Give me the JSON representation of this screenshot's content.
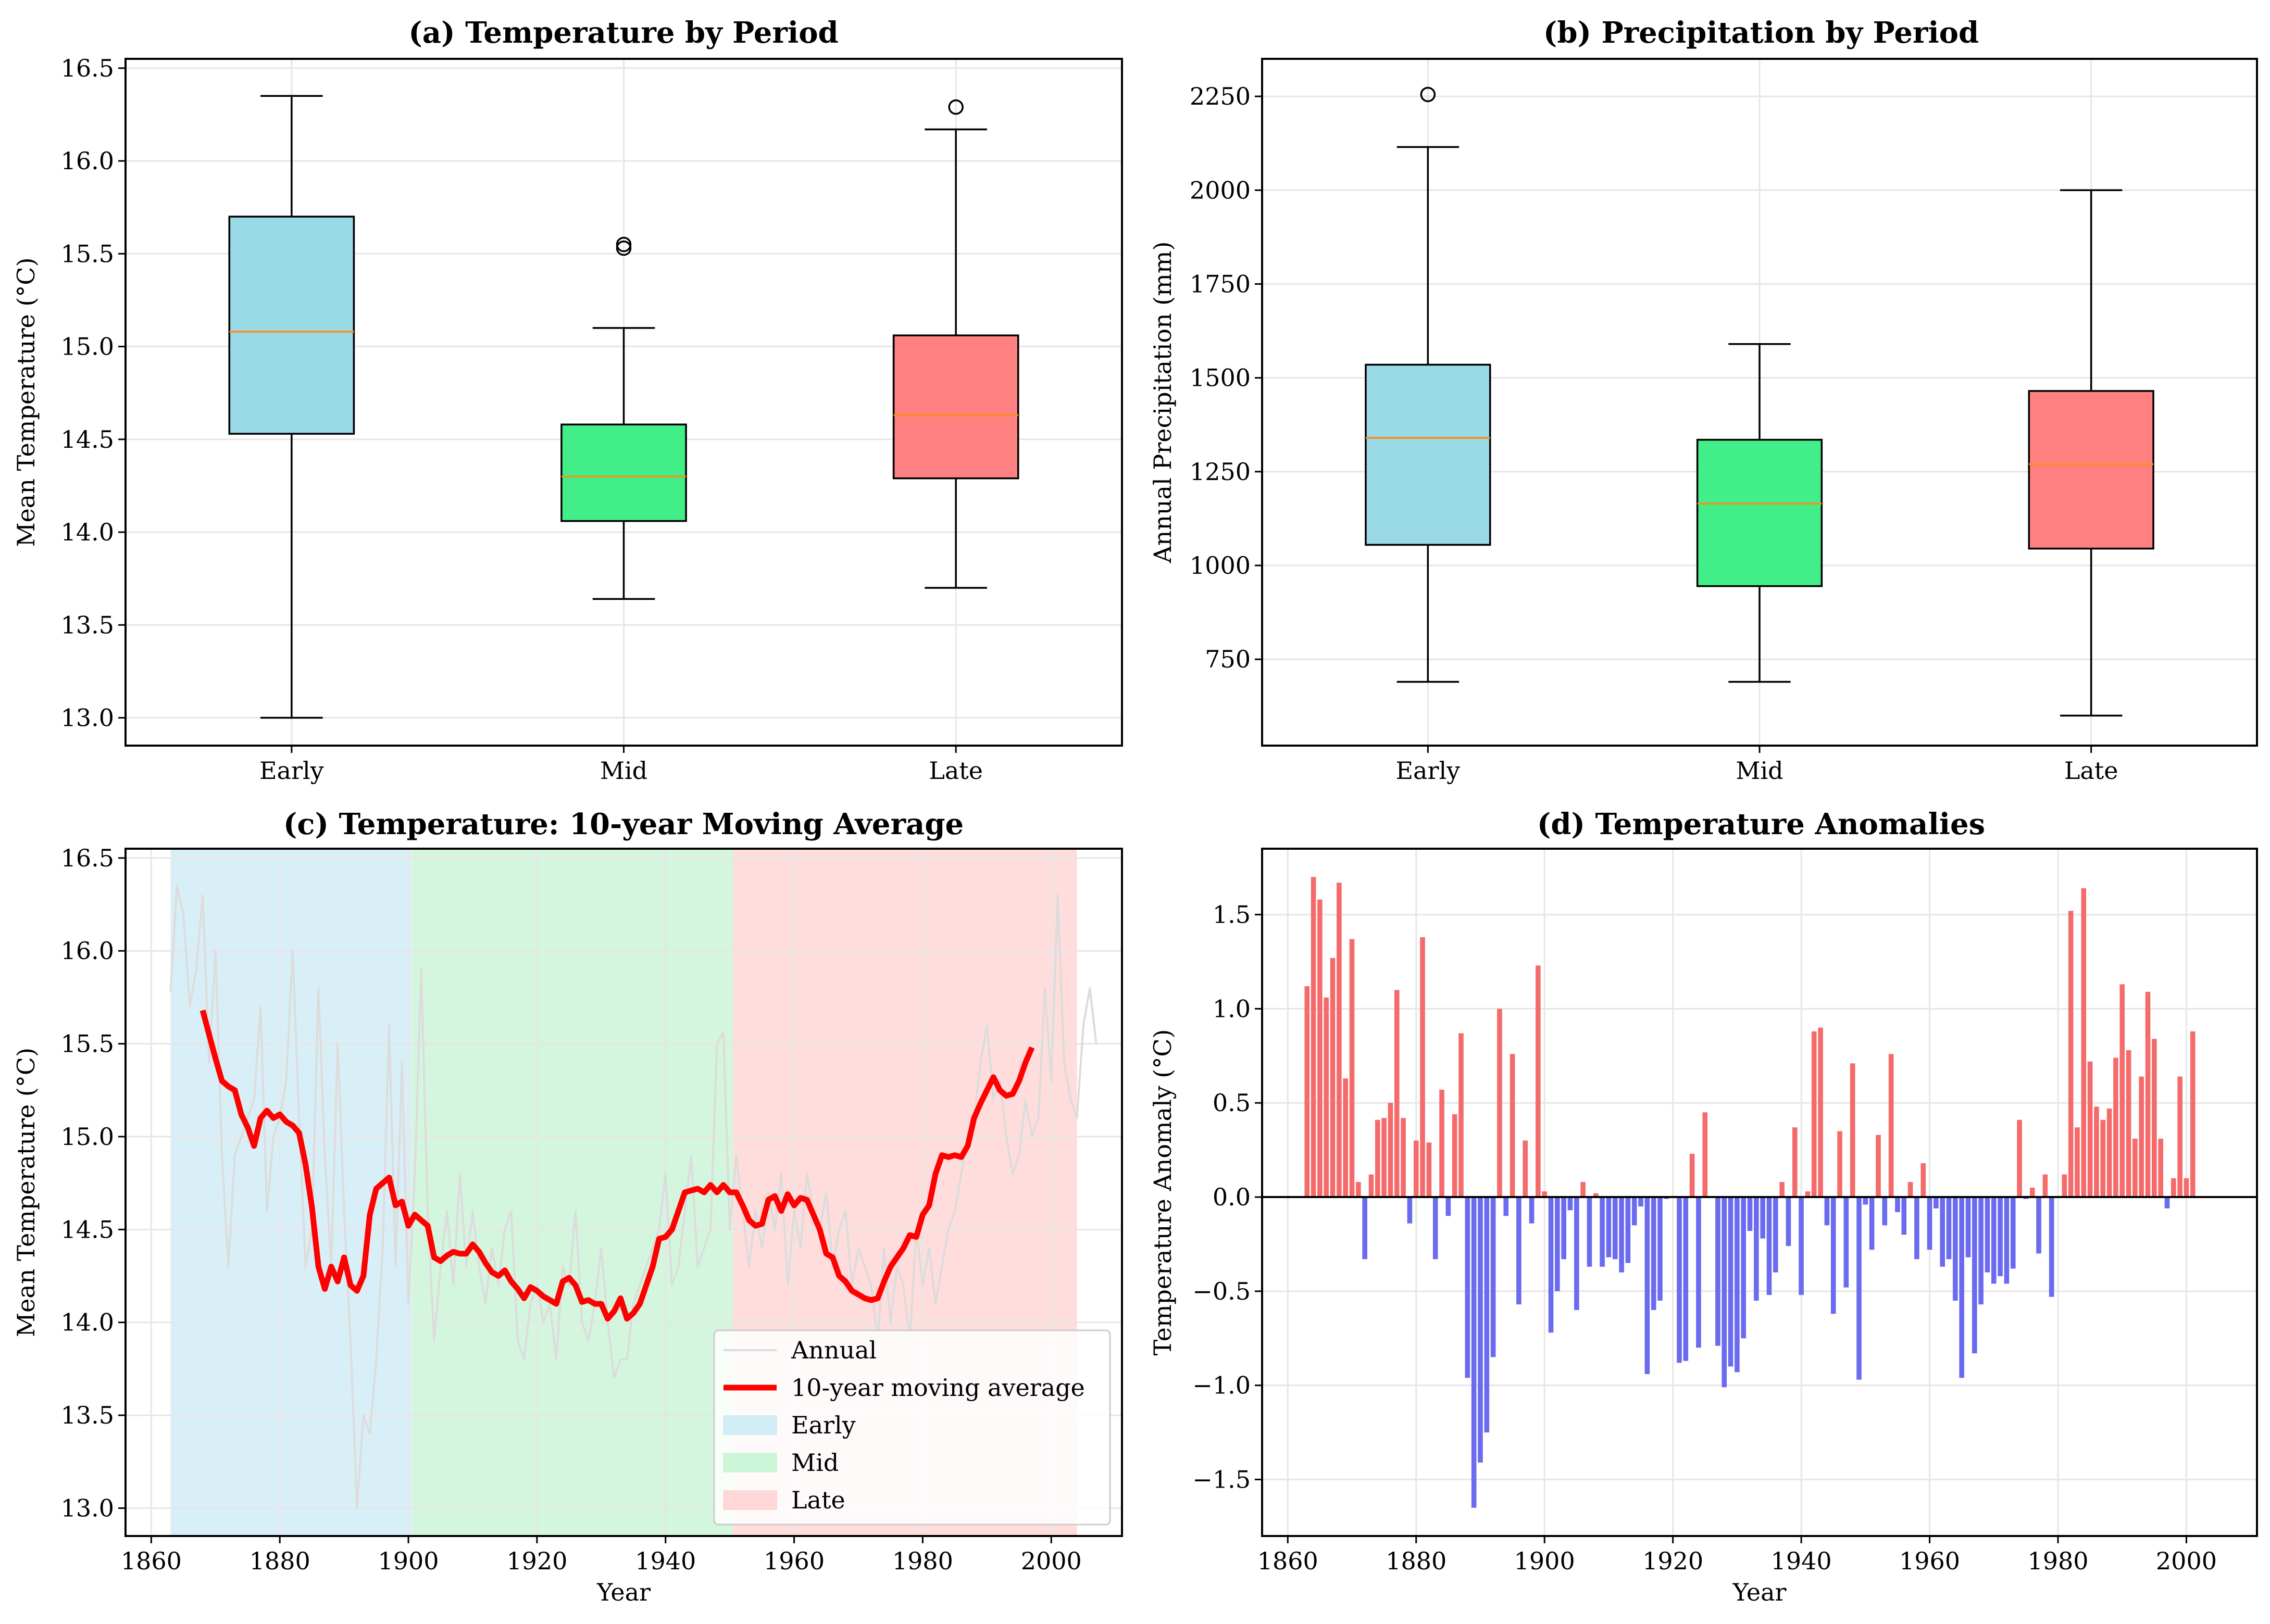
{
  "figure": {
    "panels": {
      "a": {
        "title": "(a) Temperature by Period"
      },
      "b": {
        "title": "(b) Precipitation by Period"
      },
      "c": {
        "title": "(c) Temperature: 10-year Moving Average"
      },
      "d": {
        "title": "(d) Temperature Anomalies"
      }
    }
  },
  "chart_data": [
    {
      "id": "a",
      "type": "box",
      "title": "(a) Temperature by Period",
      "xlabel": "",
      "ylabel": "Mean Temperature (°C)",
      "ylim": [
        12.85,
        16.55
      ],
      "yticks": [
        13.0,
        13.5,
        14.0,
        14.5,
        15.0,
        15.5,
        16.0,
        16.5
      ],
      "yticklabels": [
        "13.0",
        "13.5",
        "14.0",
        "14.5",
        "15.0",
        "15.5",
        "16.0",
        "16.5"
      ],
      "categories": [
        "Early",
        "Mid",
        "Late"
      ],
      "colors": [
        "#9ad9e6",
        "#42ee88",
        "#ff8080"
      ],
      "median_color": "#ff8c1a",
      "boxes": [
        {
          "whislo": 13.0,
          "q1": 14.53,
          "med": 15.08,
          "q3": 15.7,
          "whishi": 16.35,
          "fliers": []
        },
        {
          "whislo": 13.64,
          "q1": 14.06,
          "med": 14.3,
          "q3": 14.58,
          "whishi": 15.1,
          "fliers": [
            15.53,
            15.55
          ]
        },
        {
          "whislo": 13.7,
          "q1": 14.29,
          "med": 14.63,
          "q3": 15.06,
          "whishi": 16.17,
          "fliers": [
            16.29
          ]
        }
      ]
    },
    {
      "id": "b",
      "type": "box",
      "title": "(b) Precipitation by Period",
      "xlabel": "",
      "ylabel": "Annual Precipitation (mm)",
      "ylim": [
        520,
        2350
      ],
      "yticks": [
        750,
        1000,
        1250,
        1500,
        1750,
        2000,
        2250
      ],
      "yticklabels": [
        "750",
        "1000",
        "1250",
        "1500",
        "1750",
        "2000",
        "2250"
      ],
      "categories": [
        "Early",
        "Mid",
        "Late"
      ],
      "colors": [
        "#9ad9e6",
        "#42ee88",
        "#ff8080"
      ],
      "median_color": "#ff8c1a",
      "boxes": [
        {
          "whislo": 690,
          "q1": 1055,
          "med": 1340,
          "q3": 1535,
          "whishi": 2115,
          "fliers": [
            2255
          ]
        },
        {
          "whislo": 690,
          "q1": 945,
          "med": 1165,
          "q3": 1335,
          "whishi": 1590,
          "fliers": []
        },
        {
          "whislo": 600,
          "q1": 1045,
          "med": 1270,
          "q3": 1465,
          "whishi": 2000,
          "fliers": []
        }
      ]
    },
    {
      "id": "c",
      "type": "line",
      "title": "(c) Temperature: 10-year Moving Average",
      "xlabel": "Year",
      "ylabel": "Mean Temperature (°C)",
      "xlim": [
        1856,
        2011
      ],
      "ylim": [
        12.85,
        16.55
      ],
      "xticks": [
        1860,
        1880,
        1900,
        1920,
        1940,
        1960,
        1980,
        2000
      ],
      "xticklabels": [
        "1860",
        "1880",
        "1900",
        "1920",
        "1940",
        "1960",
        "1980",
        "2000"
      ],
      "yticks": [
        13.0,
        13.5,
        14.0,
        14.5,
        15.0,
        15.5,
        16.0,
        16.5
      ],
      "yticklabels": [
        "13.0",
        "13.5",
        "14.0",
        "14.5",
        "15.0",
        "15.5",
        "16.0",
        "16.5"
      ],
      "spans": [
        {
          "label": "Early",
          "x0": 1863,
          "x1": 1900.5,
          "color": "#d2ecf6"
        },
        {
          "label": "Mid",
          "x0": 1900.5,
          "x1": 1950.5,
          "color": "#cdf5d8"
        },
        {
          "label": "Late",
          "x0": 1950.5,
          "x1": 2004,
          "color": "#ffd7d7"
        }
      ],
      "series": [
        {
          "name": "Annual",
          "color": "#dcdcdc",
          "start_year": 1863,
          "values": [
            15.78,
            16.35,
            16.2,
            15.7,
            15.9,
            16.3,
            15.4,
            16.0,
            14.9,
            14.3,
            14.9,
            15.0,
            15.1,
            15.2,
            15.7,
            14.6,
            15.0,
            15.1,
            15.3,
            16.0,
            15.1,
            14.3,
            14.5,
            15.8,
            14.9,
            14.3,
            15.5,
            14.6,
            13.9,
            13.0,
            13.5,
            13.4,
            13.8,
            14.4,
            15.6,
            14.3,
            15.4,
            14.1,
            14.8,
            15.9,
            14.6,
            13.9,
            14.3,
            14.6,
            14.2,
            14.8,
            14.3,
            14.6,
            14.3,
            14.1,
            14.4,
            14.2,
            14.5,
            14.6,
            13.9,
            13.8,
            14.1,
            14.2,
            14.0,
            14.1,
            13.8,
            14.3,
            14.2,
            14.6,
            14.0,
            13.9,
            14.1,
            14.4,
            14.0,
            13.7,
            13.8,
            13.8,
            14.1,
            14.2,
            14.3,
            14.4,
            14.5,
            14.8,
            14.2,
            14.3,
            14.6,
            14.9,
            14.3,
            14.4,
            14.5,
            15.5,
            15.56,
            14.5,
            14.9,
            14.6,
            14.3,
            14.6,
            14.4,
            14.7,
            14.5,
            14.8,
            14.2,
            14.6,
            14.4,
            14.8,
            14.6,
            14.5,
            14.7,
            14.3,
            14.5,
            14.6,
            14.2,
            14.4,
            14.3,
            14.2,
            13.9,
            14.4,
            14.0,
            14.3,
            14.2,
            13.9,
            14.5,
            14.2,
            14.4,
            14.1,
            14.3,
            14.5,
            14.6,
            14.8,
            15.0,
            15.1,
            15.4,
            15.6,
            15.2,
            15.3,
            15.0,
            14.8,
            14.9,
            15.2,
            15.0,
            15.1,
            15.8,
            15.3,
            16.3,
            15.4,
            15.2,
            15.1,
            15.6,
            15.8,
            15.5
          ]
        },
        {
          "name": "10-year moving average",
          "color": "#ff0000",
          "start_year": 1868,
          "values": [
            15.68,
            15.55,
            15.42,
            15.3,
            15.27,
            15.25,
            15.12,
            15.05,
            14.95,
            15.1,
            15.14,
            15.1,
            15.12,
            15.08,
            15.06,
            15.02,
            14.85,
            14.62,
            14.3,
            14.18,
            14.3,
            14.22,
            14.35,
            14.2,
            14.17,
            14.25,
            14.58,
            14.72,
            14.75,
            14.78,
            14.63,
            14.65,
            14.52,
            14.58,
            14.55,
            14.52,
            14.35,
            14.33,
            14.36,
            14.38,
            14.37,
            14.37,
            14.42,
            14.38,
            14.32,
            14.27,
            14.25,
            14.28,
            14.22,
            14.18,
            14.13,
            14.19,
            14.17,
            14.14,
            14.12,
            14.1,
            14.22,
            14.24,
            14.2,
            14.11,
            14.12,
            14.1,
            14.1,
            14.02,
            14.06,
            14.13,
            14.02,
            14.05,
            14.1,
            14.2,
            14.3,
            14.45,
            14.46,
            14.5,
            14.6,
            14.7,
            14.71,
            14.72,
            14.7,
            14.74,
            14.7,
            14.74,
            14.7,
            14.7,
            14.63,
            14.55,
            14.52,
            14.53,
            14.66,
            14.68,
            14.6,
            14.69,
            14.63,
            14.67,
            14.66,
            14.58,
            14.5,
            14.37,
            14.35,
            14.25,
            14.22,
            14.17,
            14.15,
            14.13,
            14.12,
            14.13,
            14.22,
            14.3,
            14.35,
            14.4,
            14.47,
            14.46,
            14.58,
            14.63,
            14.8,
            14.9,
            14.89,
            14.9,
            14.89,
            14.95,
            15.1,
            15.18,
            15.25,
            15.32,
            15.25,
            15.22,
            15.23,
            15.3,
            15.4,
            15.48
          ]
        }
      ],
      "legend": {
        "position": "lower right",
        "entries": [
          "Annual",
          "10-year moving average",
          "Early",
          "Mid",
          "Late"
        ]
      }
    },
    {
      "id": "d",
      "type": "bar",
      "title": "(d) Temperature Anomalies",
      "xlabel": "Year",
      "ylabel": "Temperature Anomaly (°C)",
      "xlim": [
        1856,
        2011
      ],
      "ylim": [
        -1.8,
        1.85
      ],
      "xticks": [
        1860,
        1880,
        1900,
        1920,
        1940,
        1960,
        1980,
        2000
      ],
      "xticklabels": [
        "1860",
        "1880",
        "1900",
        "1920",
        "1940",
        "1960",
        "1980",
        "2000"
      ],
      "yticks": [
        -1.5,
        -1.0,
        -0.5,
        0.0,
        0.5,
        1.0,
        1.5
      ],
      "yticklabels": [
        "−1.5",
        "−1.0",
        "−0.5",
        "0.0",
        "0.5",
        "1.0",
        "1.5"
      ],
      "positive_color": "#f56b6b",
      "negative_color": "#6b6bf0",
      "start_year": 1863,
      "values": [
        1.12,
        1.7,
        1.58,
        1.06,
        1.27,
        1.67,
        0.63,
        1.37,
        0.08,
        -0.33,
        0.12,
        0.41,
        0.42,
        0.5,
        1.1,
        0.42,
        -0.14,
        0.3,
        1.38,
        0.29,
        -0.33,
        0.57,
        -0.1,
        0.44,
        0.87,
        -0.96,
        -1.65,
        -1.41,
        -1.25,
        -0.85,
        1.0,
        -0.1,
        0.76,
        -0.57,
        0.3,
        -0.14,
        1.23,
        0.03,
        -0.72,
        -0.5,
        -0.33,
        -0.07,
        -0.6,
        0.08,
        -0.37,
        0.02,
        -0.37,
        -0.32,
        -0.33,
        -0.4,
        -0.35,
        -0.15,
        -0.05,
        -0.94,
        -0.6,
        -0.55,
        -0.01,
        0.0,
        -0.88,
        -0.87,
        0.23,
        -0.8,
        0.45,
        0.0,
        -0.79,
        -1.01,
        -0.9,
        -0.93,
        -0.75,
        -0.18,
        -0.55,
        -0.22,
        -0.52,
        -0.4,
        0.08,
        -0.26,
        0.37,
        -0.52,
        0.03,
        0.88,
        0.9,
        -0.15,
        -0.62,
        0.35,
        -0.48,
        0.71,
        -0.97,
        -0.04,
        -0.28,
        0.33,
        -0.15,
        0.76,
        -0.08,
        -0.2,
        0.08,
        -0.33,
        0.18,
        -0.28,
        -0.06,
        -0.37,
        -0.33,
        -0.55,
        -0.96,
        -0.32,
        -0.83,
        -0.57,
        -0.4,
        -0.46,
        -0.42,
        -0.46,
        -0.38,
        0.41,
        -0.01,
        0.05,
        -0.3,
        0.12,
        -0.53,
        0.0,
        0.12,
        1.52,
        0.37,
        1.64,
        0.72,
        0.48,
        0.41,
        0.47,
        0.74,
        1.13,
        0.78,
        0.31,
        0.64,
        1.09,
        0.84,
        0.31,
        -0.06,
        0.1,
        0.64,
        0.1,
        0.88
      ]
    }
  ]
}
